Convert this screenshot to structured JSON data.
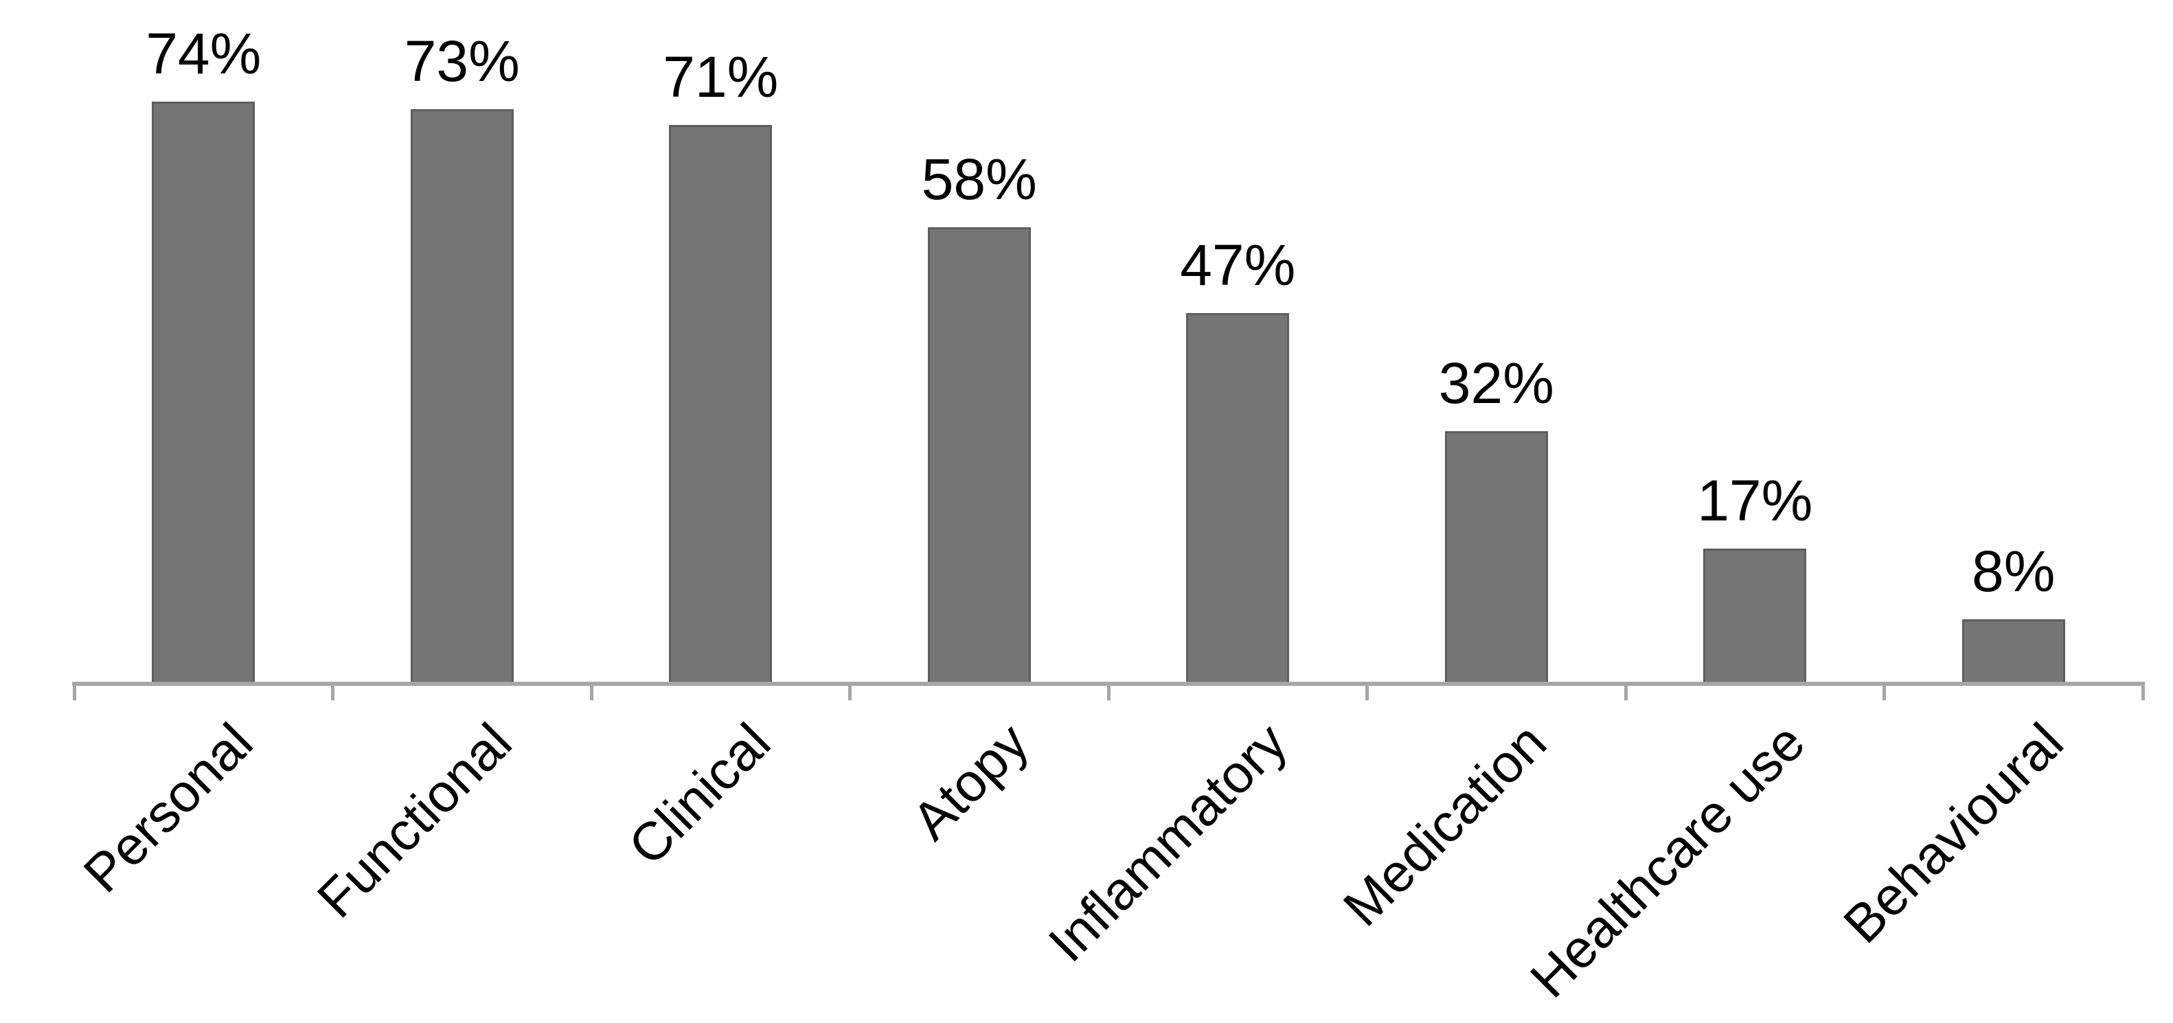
{
  "chart_data": {
    "type": "bar",
    "categories": [
      "Personal",
      "Functional",
      "Clinical",
      "Atopy",
      "Inflammatory",
      "Medication",
      "Healthcare use",
      "Behavioural"
    ],
    "values": [
      74,
      73,
      71,
      58,
      47,
      32,
      17,
      8
    ],
    "data_labels": [
      "74%",
      "73%",
      "71%",
      "58%",
      "47%",
      "32%",
      "17%",
      "8%"
    ],
    "title": "",
    "xlabel": "",
    "ylabel": "",
    "ylim": [
      0,
      100
    ],
    "grid": false,
    "legend": false,
    "y_axis_visible": false,
    "x_tick_marks": "outside, at category boundaries",
    "category_label_rotation_deg": -45,
    "colors": {
      "bar_fill": "#757575",
      "bar_border": "#5e5e5e",
      "axis_line": "#a6a6a6",
      "text": "#000000",
      "background": "#ffffff"
    }
  }
}
